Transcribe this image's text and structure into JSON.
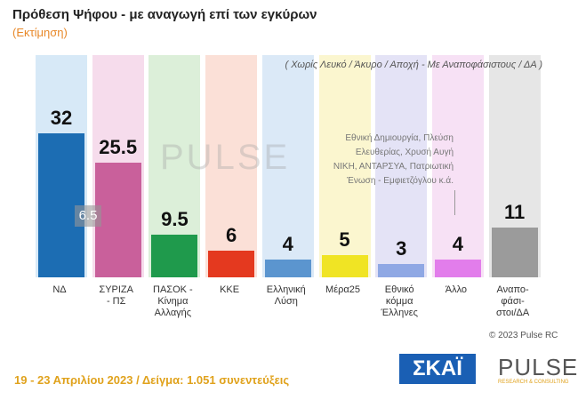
{
  "chart_data": {
    "type": "bar",
    "title": "Πρόθεση Ψήφου - με αναγωγή επί των εγκύρων",
    "subtitle": "(Εκτίμηση)",
    "note": "( Χωρίς Λευκό / Άκυρο / Αποχή  -  Με Αναποφάσιστους / ΔΑ )",
    "categories": [
      "ΝΔ",
      "ΣΥΡΙΖΑ\n- ΠΣ",
      "ΠΑΣΟΚ -\nΚίνημα\nΑλλαγής",
      "ΚΚΕ",
      "Ελληνική\nΛύση",
      "Μέρα25",
      "Εθνικό\nκόμμα\nΈλληνες",
      "Άλλο",
      "Αναπο-\nφάσι-\nστοι/ΔΑ"
    ],
    "values": [
      32,
      25.5,
      9.5,
      6,
      4,
      5,
      3,
      4,
      11
    ],
    "colors": [
      "#1c6db3",
      "#c9609b",
      "#1f9a4c",
      "#e4391f",
      "#5b95cf",
      "#f0e424",
      "#8fa8e4",
      "#e27deb",
      "#9b9b9b"
    ],
    "background_colors": [
      "#d7e9f7",
      "#f6dcec",
      "#dcefd9",
      "#fbe0d7",
      "#dbe9f7",
      "#fbf6cf",
      "#e4e3f6",
      "#f7e1f5",
      "#e6e6e6"
    ],
    "annotations": [
      {
        "text": "6.5"
      },
      {
        "text": "Εθνική Δημιουργία, Πλεύση\nΕλευθερίας, Χρυσή Αυγή\nΝΙΚΗ, ΑΝΤΑΡΣΥΑ, Πατριωτική\nΈνωση - Εμφιετζόγλου  κ.ά."
      }
    ],
    "source": "© 2023 Pulse RC",
    "footer": "19 - 23 Απριλίου  2023  /  Δείγμα:  1.051 συνεντεύξεις",
    "logos": {
      "skai": "ΣΚΑΪ",
      "pulse": "PULSE",
      "pulse_sub": "RESEARCH & CONSULTING"
    }
  }
}
